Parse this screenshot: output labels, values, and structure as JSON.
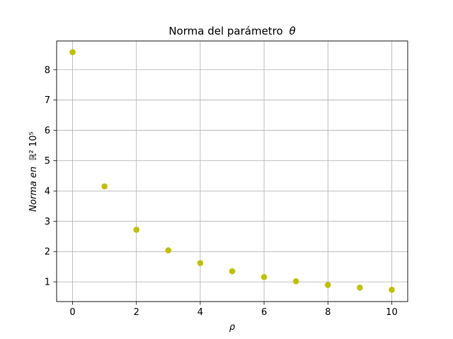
{
  "chart_data": {
    "type": "scatter",
    "title": "Norma del parámetro θ",
    "title_prefix": "Norma del parámetro",
    "title_symbol": "θ",
    "xlabel": "ρ",
    "ylabel": "Norma en ℝ² 10⁵",
    "ylabel_italic": "Norma en",
    "ylabel_rest": "ℝ² 10⁵",
    "xlim": [
      -0.5,
      10.5
    ],
    "ylim": [
      0.35,
      8.95
    ],
    "xticks": [
      0,
      2,
      4,
      6,
      8,
      10
    ],
    "yticks": [
      1,
      2,
      3,
      4,
      5,
      6,
      7,
      8
    ],
    "grid": true,
    "legend": false,
    "series": [
      {
        "color": "#bfbf00",
        "x": [
          0,
          1,
          2,
          3,
          4,
          5,
          6,
          7,
          8,
          9,
          10
        ],
        "y": [
          8.58,
          4.15,
          2.72,
          2.04,
          1.62,
          1.35,
          1.16,
          1.02,
          0.9,
          0.81,
          0.74
        ]
      }
    ]
  }
}
